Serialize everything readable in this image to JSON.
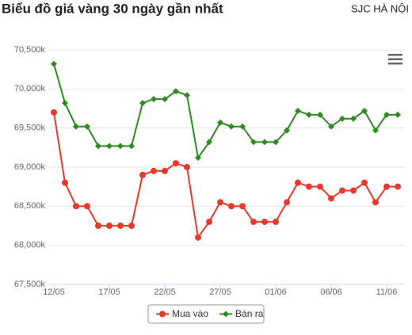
{
  "chart_data": {
    "type": "line",
    "title": "Biểu đồ giá vàng 30 ngày gần nhất",
    "subtitle": "SJC HÀ NỘI",
    "categories": [
      "12/05",
      null,
      null,
      null,
      null,
      "17/05",
      null,
      null,
      null,
      null,
      "22/05",
      null,
      null,
      null,
      null,
      "27/05",
      null,
      null,
      null,
      null,
      "01/06",
      null,
      null,
      null,
      null,
      "06/06",
      null,
      null,
      null,
      null,
      "11/06",
      null
    ],
    "series": [
      {
        "name": "Mua vào",
        "color": "#e8392b",
        "marker": "circle",
        "values": [
          69700,
          68800,
          68500,
          68500,
          68250,
          68250,
          68250,
          68250,
          68900,
          68950,
          68950,
          69050,
          69000,
          68100,
          68300,
          68550,
          68500,
          68500,
          68300,
          68300,
          68300,
          68550,
          68800,
          68750,
          68750,
          68600,
          68700,
          68700,
          68800,
          68550,
          68750,
          68750
        ]
      },
      {
        "name": "Bán ra",
        "color": "#2e8b1f",
        "marker": "diamond",
        "values": [
          70320,
          69820,
          69520,
          69520,
          69270,
          69270,
          69270,
          69270,
          69820,
          69870,
          69870,
          69970,
          69920,
          69120,
          69320,
          69570,
          69520,
          69520,
          69320,
          69320,
          69320,
          69470,
          69720,
          69670,
          69670,
          69520,
          69620,
          69620,
          69720,
          69470,
          69670,
          69670
        ]
      }
    ],
    "ylim": [
      67500,
      70500
    ],
    "yticks": [
      {
        "value": 67500,
        "label": "67,500k"
      },
      {
        "value": 68000,
        "label": "68,000k"
      },
      {
        "value": 68500,
        "label": "68,500k"
      },
      {
        "value": 69000,
        "label": "69,000k"
      },
      {
        "value": 69500,
        "label": "69,500k"
      },
      {
        "value": 70000,
        "label": "70,000k"
      },
      {
        "value": 70500,
        "label": "70,500k"
      }
    ],
    "grid": true,
    "legend": "bottom"
  }
}
